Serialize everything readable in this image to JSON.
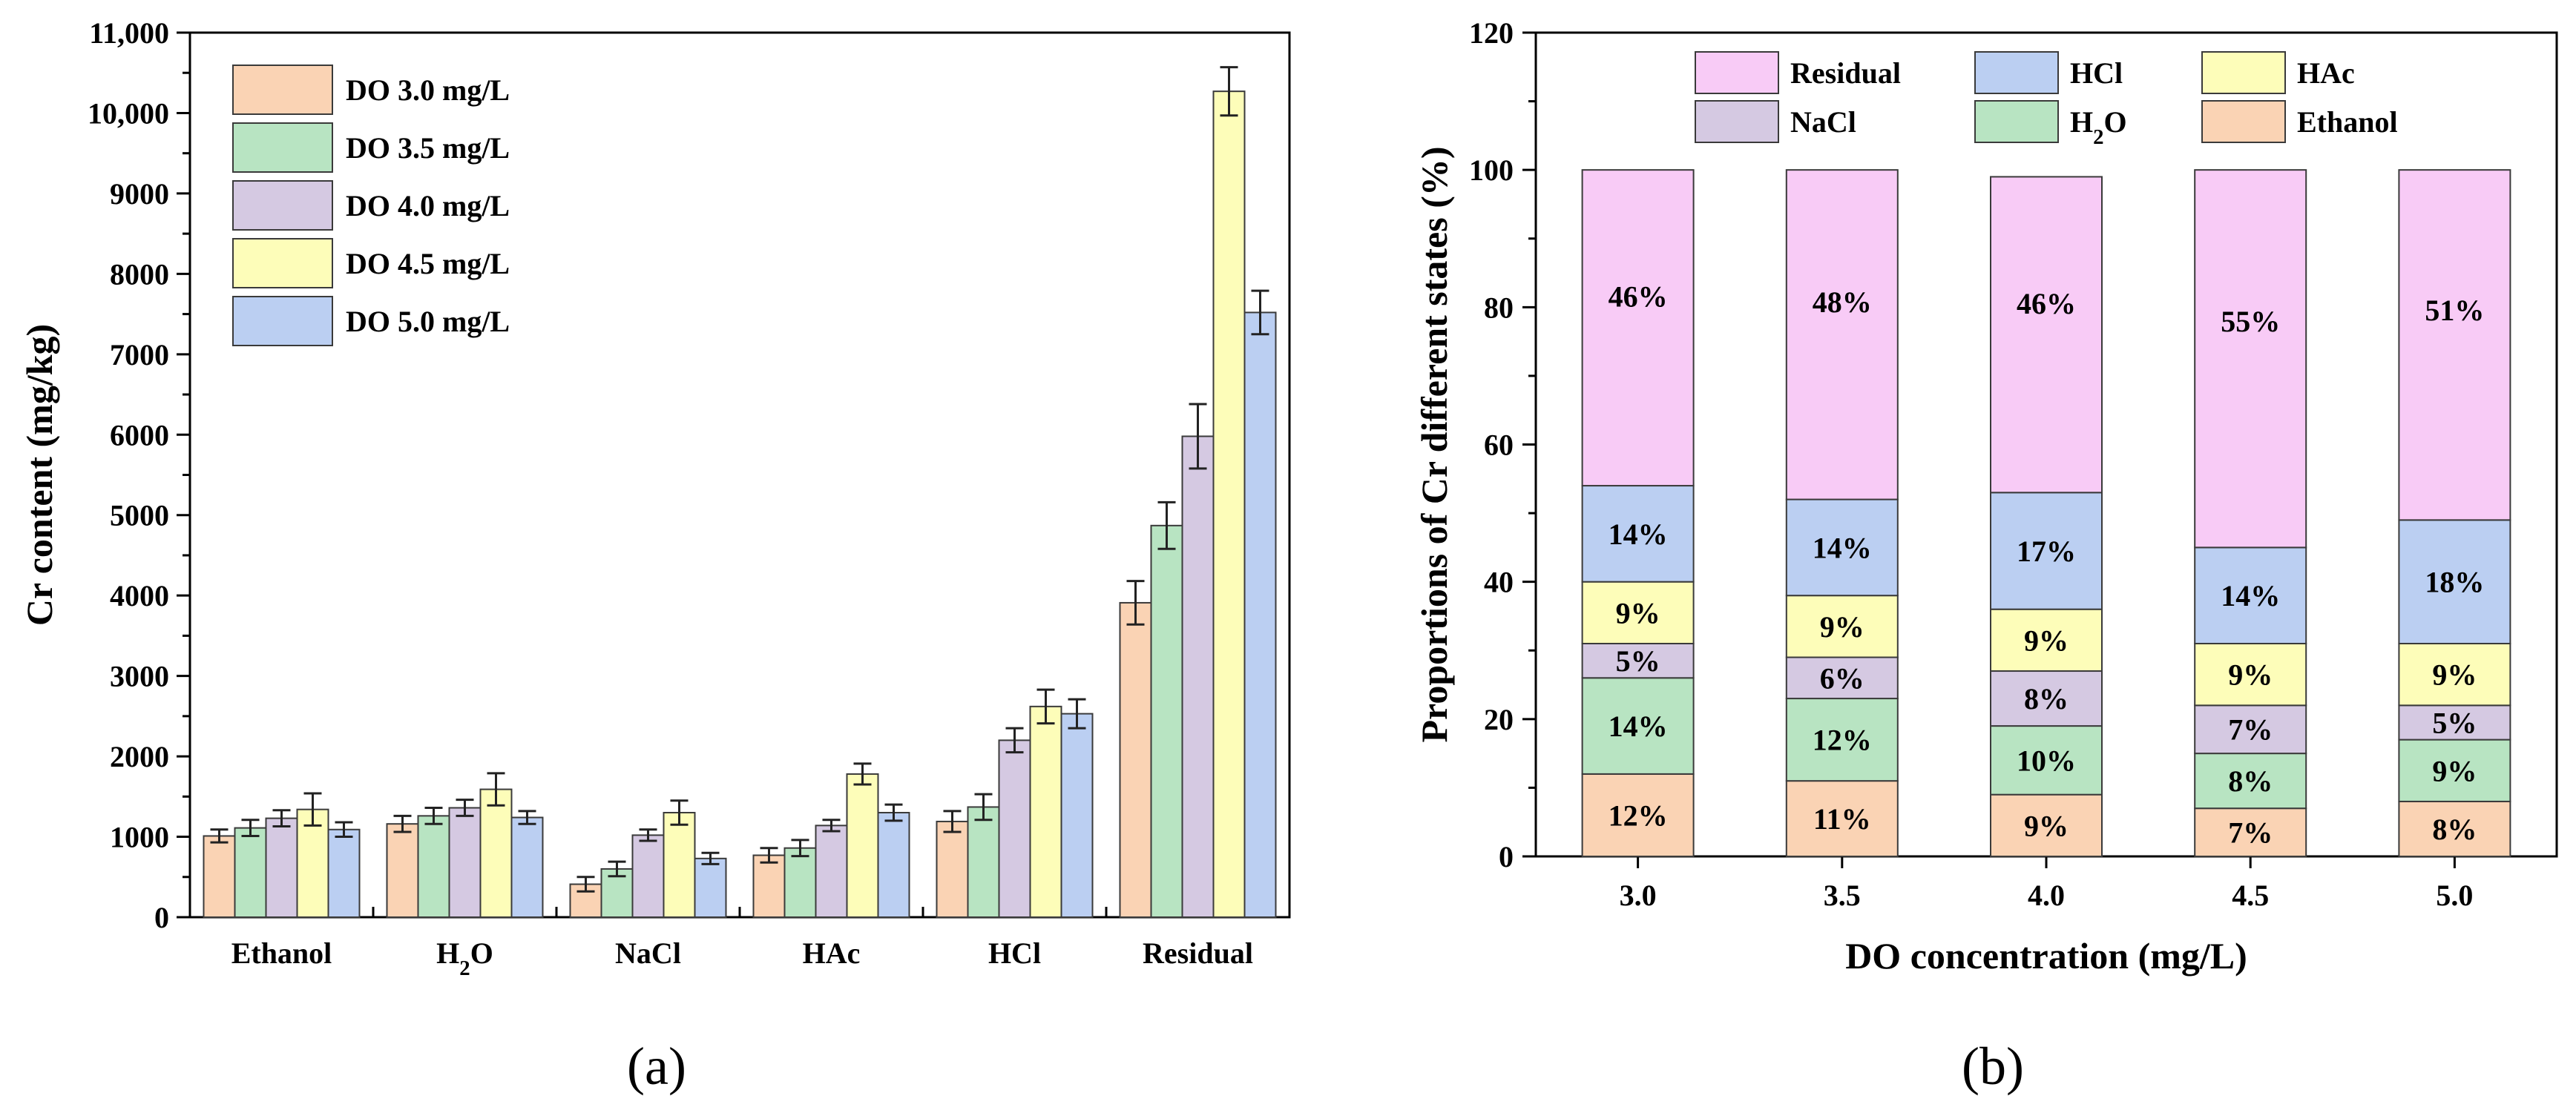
{
  "chart_data": [
    {
      "type": "bar",
      "panel": "(a)",
      "ylabel": "Cr content (mg/kg)",
      "xlabel": "",
      "ylim": [
        0,
        11000
      ],
      "yticks": [
        0,
        1000,
        2000,
        3000,
        4000,
        5000,
        6000,
        7000,
        8000,
        9000,
        10000,
        11000
      ],
      "ytick_labels": [
        "0",
        "1000",
        "2000",
        "3000",
        "4000",
        "5000",
        "6000",
        "7000",
        "8000",
        "9000",
        "10,000",
        "11,000"
      ],
      "categories": [
        "Ethanol",
        "H2O",
        "NaCl",
        "HAc",
        "HCl",
        "Residual"
      ],
      "legend_position": "top-left",
      "series": [
        {
          "name": "DO 3.0 mg/L",
          "color": "#FAD3B4",
          "values": [
            1010,
            1160,
            410,
            770,
            1190,
            3910
          ],
          "errors": [
            80,
            100,
            90,
            90,
            130,
            270
          ]
        },
        {
          "name": "DO 3.5 mg/L",
          "color": "#B8E4C2",
          "values": [
            1110,
            1260,
            600,
            860,
            1370,
            4870
          ],
          "errors": [
            100,
            100,
            90,
            100,
            160,
            290
          ]
        },
        {
          "name": "DO 4.0 mg/L",
          "color": "#D5C9E2",
          "values": [
            1230,
            1360,
            1020,
            1140,
            2200,
            5980
          ],
          "errors": [
            100,
            100,
            70,
            70,
            150,
            400
          ]
        },
        {
          "name": "DO 4.5 mg/L",
          "color": "#FDFDB9",
          "values": [
            1340,
            1590,
            1300,
            1780,
            2620,
            10270
          ],
          "errors": [
            200,
            200,
            150,
            130,
            210,
            300
          ]
        },
        {
          "name": "DO 5.0 mg/L",
          "color": "#BBCFF2",
          "values": [
            1090,
            1240,
            730,
            1300,
            2530,
            7520
          ],
          "errors": [
            90,
            80,
            70,
            100,
            180,
            270
          ]
        }
      ]
    },
    {
      "type": "bar",
      "stacked": true,
      "panel": "(b)",
      "ylabel": "Proportions of Cr different states (%)",
      "xlabel": "DO concentration (mg/L)",
      "ylim": [
        0,
        120
      ],
      "yticks": [
        0,
        20,
        40,
        60,
        80,
        100,
        120
      ],
      "categories": [
        "3.0",
        "3.5",
        "4.0",
        "4.5",
        "5.0"
      ],
      "legend_position": "top",
      "legend": [
        "Residual",
        "HCl",
        "HAc",
        "NaCl",
        "H2O",
        "Ethanol"
      ],
      "series": [
        {
          "name": "Ethanol",
          "color": "#FAD3B4",
          "values": [
            12,
            11,
            9,
            7,
            8
          ],
          "labels": [
            "12%",
            "11%",
            "9%",
            "7%",
            "8%"
          ]
        },
        {
          "name": "H2O",
          "color": "#B8E4C2",
          "values": [
            14,
            12,
            10,
            8,
            9
          ],
          "labels": [
            "14%",
            "12%",
            "10%",
            "8%",
            "9%"
          ]
        },
        {
          "name": "NaCl",
          "color": "#D5C9E2",
          "values": [
            5,
            6,
            8,
            7,
            5
          ],
          "labels": [
            "5%",
            "6%",
            "8%",
            "7%",
            "5%"
          ]
        },
        {
          "name": "HAc",
          "color": "#FDFDB9",
          "values": [
            9,
            9,
            9,
            9,
            9
          ],
          "labels": [
            "9%",
            "9%",
            "9%",
            "9%",
            "9%"
          ]
        },
        {
          "name": "HCl",
          "color": "#BBCFF2",
          "values": [
            14,
            14,
            17,
            14,
            18
          ],
          "labels": [
            "14%",
            "14%",
            "17%",
            "14%",
            "18%"
          ]
        },
        {
          "name": "Residual",
          "color": "#F8CBF6",
          "values": [
            46,
            48,
            46,
            55,
            51
          ],
          "labels": [
            "46%",
            "48%",
            "46%",
            "55%",
            "51%"
          ]
        }
      ]
    }
  ]
}
